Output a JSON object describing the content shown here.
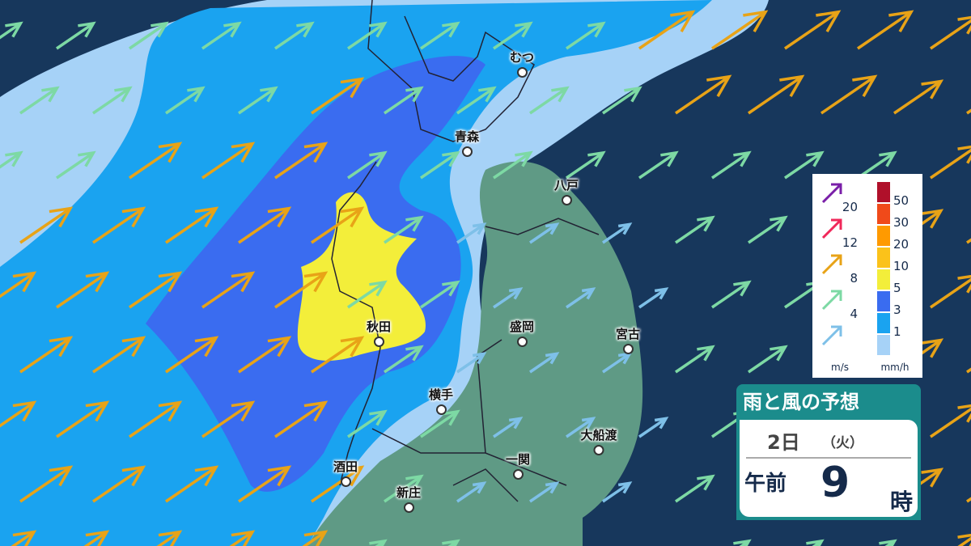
{
  "title": "雨と風の予想",
  "date": {
    "day": "2日",
    "weekday": "（火）",
    "ampm": "午前",
    "hour": "9",
    "hour_unit": "時"
  },
  "cities": [
    "むつ",
    "青森",
    "八戸",
    "秋田",
    "盛岡",
    "宮古",
    "横手",
    "大船渡",
    "一関",
    "酒田",
    "新庄"
  ],
  "wind_legend": {
    "unit": "m/s",
    "levels": [
      {
        "label": "20",
        "color": "#7a1fa8"
      },
      {
        "label": "12",
        "color": "#f0285a"
      },
      {
        "label": "8",
        "color": "#e8a317"
      },
      {
        "label": "4",
        "color": "#7dd9a4"
      },
      {
        "label": "",
        "color": "#7ec0e8"
      }
    ]
  },
  "rain_legend": {
    "unit": "mm/h",
    "levels": [
      {
        "label": "50",
        "color": "#b0102a"
      },
      {
        "label": "30",
        "color": "#f04a1a"
      },
      {
        "label": "20",
        "color": "#ff9a00"
      },
      {
        "label": "10",
        "color": "#fbc21a"
      },
      {
        "label": "5",
        "color": "#f3ee3a"
      },
      {
        "label": "3",
        "color": "#3a6cf0"
      },
      {
        "label": "1",
        "color": "#1aa3f0"
      },
      {
        "label": "",
        "color": "#a6d2f7"
      }
    ]
  },
  "colors": {
    "sea": "#17375c",
    "land": "#5f9a85",
    "rain_light": "#a6d2f7",
    "rain_1": "#1aa3f0",
    "rain_3": "#3a6cf0",
    "rain_5": "#f3ee3a"
  }
}
